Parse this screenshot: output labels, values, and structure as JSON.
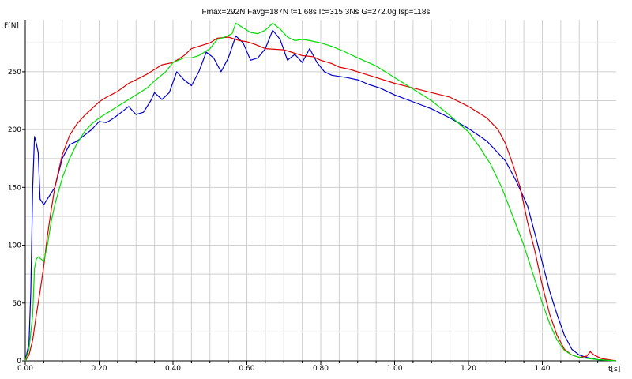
{
  "header": {
    "text": "Fmax=292N  Favg=187N  t=1.68s  Ic=315.3Ns  G=272.0g  Isp=118s"
  },
  "chart_data": {
    "type": "line",
    "title": "Fmax=292N  Favg=187N  t=1.68s  Ic=315.3Ns  G=272.0g  Isp=118s",
    "xlabel": "t[s]",
    "ylabel": "F[N]",
    "xlim": [
      0,
      1.6
    ],
    "ylim": [
      0,
      295
    ],
    "grid": true,
    "xticks": [
      {
        "value": 0.0,
        "label": "0.00"
      },
      {
        "value": 0.2,
        "label": "0.20"
      },
      {
        "value": 0.4,
        "label": "0.40"
      },
      {
        "value": 0.6,
        "label": "0.60"
      },
      {
        "value": 0.8,
        "label": "0.80"
      },
      {
        "value": 1.0,
        "label": "1.00"
      },
      {
        "value": 1.2,
        "label": "1.20"
      },
      {
        "value": 1.4,
        "label": "1.40"
      }
    ],
    "yticks": [
      {
        "value": 0,
        "label": "0"
      },
      {
        "value": 50,
        "label": "50"
      },
      {
        "value": 100,
        "label": "100"
      },
      {
        "value": 150,
        "label": "150"
      },
      {
        "value": 200,
        "label": "200"
      },
      {
        "value": 250,
        "label": "250"
      }
    ],
    "series": [
      {
        "color": "#0000cc",
        "points": [
          [
            0,
            0
          ],
          [
            0.01,
            15
          ],
          [
            0.015,
            60
          ],
          [
            0.02,
            150
          ],
          [
            0.025,
            194
          ],
          [
            0.03,
            188
          ],
          [
            0.035,
            180
          ],
          [
            0.04,
            140
          ],
          [
            0.05,
            135
          ],
          [
            0.06,
            140
          ],
          [
            0.08,
            150
          ],
          [
            0.1,
            175
          ],
          [
            0.12,
            187
          ],
          [
            0.14,
            190
          ],
          [
            0.16,
            195
          ],
          [
            0.18,
            200
          ],
          [
            0.2,
            207
          ],
          [
            0.22,
            206
          ],
          [
            0.24,
            210
          ],
          [
            0.26,
            215
          ],
          [
            0.28,
            220
          ],
          [
            0.3,
            213
          ],
          [
            0.32,
            215
          ],
          [
            0.34,
            225
          ],
          [
            0.35,
            232
          ],
          [
            0.37,
            226
          ],
          [
            0.39,
            232
          ],
          [
            0.41,
            250
          ],
          [
            0.43,
            243
          ],
          [
            0.45,
            238
          ],
          [
            0.47,
            250
          ],
          [
            0.49,
            267
          ],
          [
            0.51,
            262
          ],
          [
            0.53,
            250
          ],
          [
            0.55,
            262
          ],
          [
            0.57,
            281
          ],
          [
            0.59,
            275
          ],
          [
            0.61,
            260
          ],
          [
            0.63,
            262
          ],
          [
            0.65,
            270
          ],
          [
            0.67,
            286
          ],
          [
            0.69,
            278
          ],
          [
            0.71,
            260
          ],
          [
            0.73,
            265
          ],
          [
            0.75,
            258
          ],
          [
            0.77,
            270
          ],
          [
            0.79,
            258
          ],
          [
            0.81,
            250
          ],
          [
            0.83,
            247
          ],
          [
            0.85,
            246
          ],
          [
            0.87,
            245
          ],
          [
            0.9,
            243
          ],
          [
            0.93,
            239
          ],
          [
            0.96,
            236
          ],
          [
            1.0,
            230
          ],
          [
            1.05,
            224
          ],
          [
            1.1,
            218
          ],
          [
            1.15,
            210
          ],
          [
            1.2,
            201
          ],
          [
            1.25,
            190
          ],
          [
            1.3,
            173
          ],
          [
            1.33,
            155
          ],
          [
            1.36,
            134
          ],
          [
            1.38,
            110
          ],
          [
            1.4,
            85
          ],
          [
            1.42,
            60
          ],
          [
            1.44,
            40
          ],
          [
            1.46,
            22
          ],
          [
            1.48,
            10
          ],
          [
            1.5,
            5
          ],
          [
            1.52,
            3
          ],
          [
            1.55,
            1
          ],
          [
            1.6,
            0
          ]
        ]
      },
      {
        "color": "#dd0000",
        "points": [
          [
            0,
            0
          ],
          [
            0.01,
            5
          ],
          [
            0.02,
            18
          ],
          [
            0.03,
            40
          ],
          [
            0.04,
            60
          ],
          [
            0.05,
            82
          ],
          [
            0.06,
            108
          ],
          [
            0.07,
            130
          ],
          [
            0.08,
            150
          ],
          [
            0.1,
            178
          ],
          [
            0.12,
            195
          ],
          [
            0.14,
            205
          ],
          [
            0.16,
            212
          ],
          [
            0.18,
            218
          ],
          [
            0.2,
            224
          ],
          [
            0.22,
            228
          ],
          [
            0.25,
            233
          ],
          [
            0.28,
            240
          ],
          [
            0.3,
            243
          ],
          [
            0.33,
            248
          ],
          [
            0.35,
            252
          ],
          [
            0.37,
            256
          ],
          [
            0.4,
            258
          ],
          [
            0.43,
            264
          ],
          [
            0.45,
            270
          ],
          [
            0.48,
            273
          ],
          [
            0.5,
            275
          ],
          [
            0.52,
            279
          ],
          [
            0.55,
            280
          ],
          [
            0.58,
            277
          ],
          [
            0.6,
            276
          ],
          [
            0.62,
            274
          ],
          [
            0.65,
            270
          ],
          [
            0.7,
            269
          ],
          [
            0.72,
            267
          ],
          [
            0.75,
            264
          ],
          [
            0.78,
            263
          ],
          [
            0.8,
            260
          ],
          [
            0.83,
            257
          ],
          [
            0.85,
            254
          ],
          [
            0.88,
            252
          ],
          [
            0.9,
            250
          ],
          [
            0.95,
            245
          ],
          [
            1.0,
            240
          ],
          [
            1.05,
            236
          ],
          [
            1.1,
            232
          ],
          [
            1.15,
            228
          ],
          [
            1.2,
            220
          ],
          [
            1.25,
            210
          ],
          [
            1.28,
            200
          ],
          [
            1.3,
            188
          ],
          [
            1.32,
            170
          ],
          [
            1.34,
            150
          ],
          [
            1.36,
            120
          ],
          [
            1.38,
            95
          ],
          [
            1.4,
            65
          ],
          [
            1.42,
            40
          ],
          [
            1.44,
            22
          ],
          [
            1.46,
            10
          ],
          [
            1.48,
            5
          ],
          [
            1.5,
            3
          ],
          [
            1.52,
            4
          ],
          [
            1.53,
            8
          ],
          [
            1.54,
            5
          ],
          [
            1.56,
            2
          ],
          [
            1.6,
            0
          ]
        ]
      },
      {
        "color": "#00dd00",
        "points": [
          [
            0,
            0
          ],
          [
            0.01,
            10
          ],
          [
            0.02,
            40
          ],
          [
            0.025,
            80
          ],
          [
            0.03,
            88
          ],
          [
            0.035,
            90
          ],
          [
            0.05,
            86
          ],
          [
            0.06,
            100
          ],
          [
            0.07,
            120
          ],
          [
            0.08,
            135
          ],
          [
            0.1,
            158
          ],
          [
            0.12,
            175
          ],
          [
            0.14,
            188
          ],
          [
            0.16,
            198
          ],
          [
            0.18,
            205
          ],
          [
            0.2,
            210
          ],
          [
            0.22,
            214
          ],
          [
            0.25,
            220
          ],
          [
            0.28,
            226
          ],
          [
            0.3,
            230
          ],
          [
            0.33,
            236
          ],
          [
            0.35,
            242
          ],
          [
            0.38,
            250
          ],
          [
            0.4,
            258
          ],
          [
            0.43,
            262
          ],
          [
            0.45,
            262
          ],
          [
            0.47,
            264
          ],
          [
            0.5,
            270
          ],
          [
            0.52,
            278
          ],
          [
            0.54,
            280
          ],
          [
            0.56,
            283
          ],
          [
            0.57,
            292
          ],
          [
            0.59,
            288
          ],
          [
            0.61,
            284
          ],
          [
            0.63,
            283
          ],
          [
            0.65,
            286
          ],
          [
            0.67,
            292
          ],
          [
            0.69,
            287
          ],
          [
            0.71,
            280
          ],
          [
            0.73,
            277
          ],
          [
            0.75,
            278
          ],
          [
            0.77,
            277
          ],
          [
            0.8,
            275
          ],
          [
            0.83,
            272
          ],
          [
            0.86,
            268
          ],
          [
            0.9,
            262
          ],
          [
            0.95,
            255
          ],
          [
            1.0,
            245
          ],
          [
            1.05,
            235
          ],
          [
            1.1,
            225
          ],
          [
            1.15,
            212
          ],
          [
            1.2,
            198
          ],
          [
            1.23,
            185
          ],
          [
            1.26,
            170
          ],
          [
            1.29,
            150
          ],
          [
            1.32,
            125
          ],
          [
            1.35,
            100
          ],
          [
            1.38,
            70
          ],
          [
            1.4,
            50
          ],
          [
            1.42,
            32
          ],
          [
            1.44,
            18
          ],
          [
            1.46,
            9
          ],
          [
            1.48,
            5
          ],
          [
            1.5,
            3
          ],
          [
            1.55,
            1
          ],
          [
            1.6,
            0
          ]
        ]
      }
    ]
  }
}
